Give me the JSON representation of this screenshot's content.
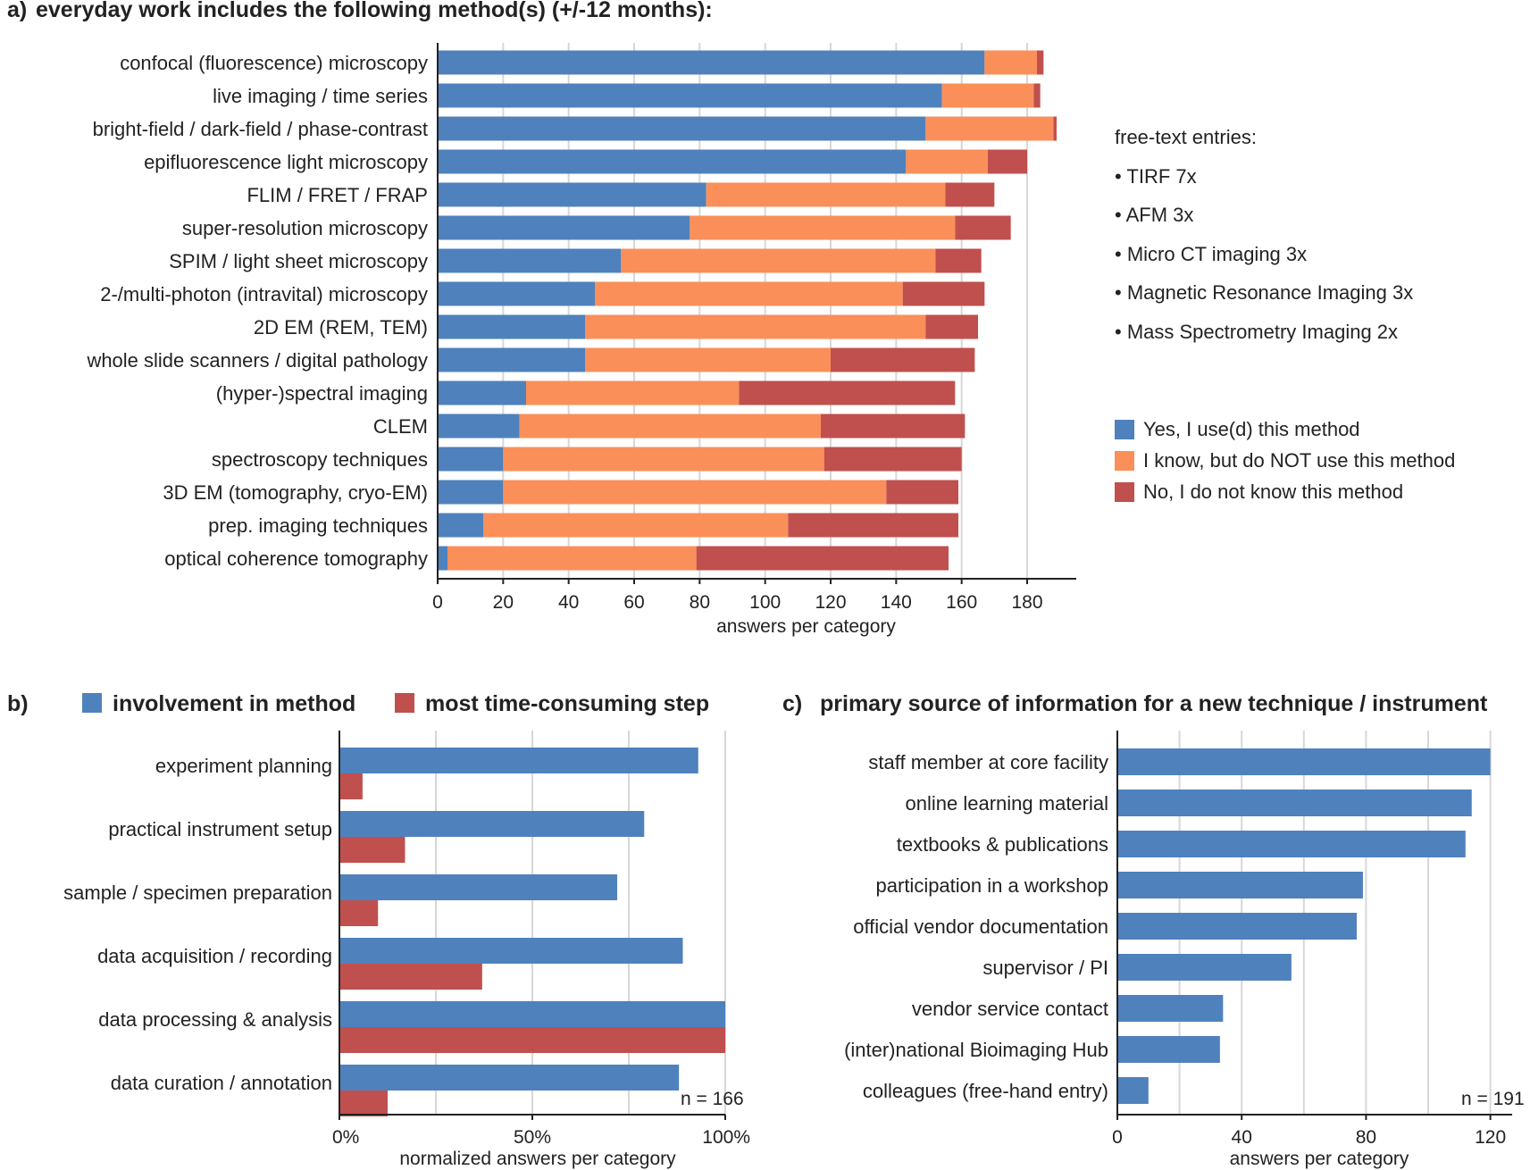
{
  "panel_a": {
    "tag": "a)",
    "title": "everyday work includes the following method(s) (+/-12 months):",
    "freetext_title": "free-text entries:",
    "freetext_items": [
      "• TIRF 7x",
      "• AFM 3x",
      "• Micro CT imaging 3x",
      "• Magnetic Resonance Imaging 3x",
      "• Mass Spectrometry Imaging 2x"
    ]
  },
  "panel_b": {
    "tag": "b)",
    "n_label": "n = 166"
  },
  "panel_c": {
    "tag": "c)",
    "title": "primary source of information for a new technique / instrument",
    "n_label": "n = 191"
  },
  "colors": {
    "blue": "#4f81bd",
    "orange": "#fa8f5a",
    "red": "#c0504d",
    "grid": "#d7d7d7"
  },
  "chart_data": [
    {
      "id": "a",
      "type": "bar",
      "orientation": "horizontal",
      "stacked": true,
      "title": "everyday work includes the following method(s) (+/-12 months):",
      "xlabel": "answers per category",
      "xlim": [
        0,
        195
      ],
      "xticks": [
        0,
        20,
        40,
        60,
        80,
        100,
        120,
        140,
        160,
        180
      ],
      "grid": true,
      "legend_position": "right",
      "categories": [
        "confocal (fluorescence) microscopy",
        "live imaging / time series",
        "bright-field / dark-field / phase-contrast",
        "epifluorescence light microscopy",
        "FLIM / FRET / FRAP",
        "super-resolution microscopy",
        "SPIM / light sheet microscopy",
        "2-/multi-photon (intravital) microscopy",
        "2D EM (REM, TEM)",
        "whole slide scanners / digital pathology",
        "(hyper-)spectral imaging",
        "CLEM",
        "spectroscopy techniques",
        "3D EM (tomography, cryo-EM)",
        "prep. imaging techniques",
        "optical coherence tomography"
      ],
      "series": [
        {
          "name": "Yes, I use(d) this method",
          "color": "#4f81bd",
          "values": [
            167,
            154,
            149,
            143,
            82,
            77,
            56,
            48,
            45,
            45,
            27,
            25,
            20,
            20,
            14,
            3
          ]
        },
        {
          "name": "I know, but do NOT use this method",
          "color": "#fa8f5a",
          "values": [
            16,
            28,
            39,
            25,
            73,
            81,
            96,
            94,
            104,
            75,
            65,
            92,
            98,
            117,
            93,
            76
          ]
        },
        {
          "name": "No, I do not know this method",
          "color": "#c0504d",
          "values": [
            2,
            2,
            1,
            12,
            15,
            17,
            14,
            25,
            16,
            44,
            66,
            44,
            42,
            22,
            52,
            77
          ]
        }
      ]
    },
    {
      "id": "b",
      "type": "bar",
      "orientation": "horizontal",
      "stacked": false,
      "xlabel": "normalized answers per category",
      "xlim": [
        0,
        100
      ],
      "xticks": [
        0,
        50,
        100
      ],
      "xtick_labels": [
        "0%",
        "50%",
        "100%"
      ],
      "grid": true,
      "legend_position": "top",
      "categories": [
        "experiment planning",
        "practical instrument setup",
        "sample / specimen preparation",
        "data acquisition / recording",
        "data processing & analysis",
        "data curation / annotation"
      ],
      "series": [
        {
          "name": "involvement in method",
          "color": "#4f81bd",
          "values": [
            93,
            79,
            72,
            89,
            100,
            88
          ]
        },
        {
          "name": "most time-consuming step",
          "color": "#c0504d",
          "values": [
            6,
            17,
            10,
            37,
            100,
            12.5
          ]
        }
      ]
    },
    {
      "id": "c",
      "type": "bar",
      "orientation": "horizontal",
      "title": "primary source of information for a new technique / instrument",
      "xlabel": "answers per category",
      "xlim": [
        0,
        127
      ],
      "xticks": [
        0,
        40,
        80,
        120
      ],
      "grid": true,
      "categories": [
        "staff member at core facility",
        "online learning material",
        "textbooks & publications",
        "participation in a workshop",
        "official vendor documentation",
        "supervisor / PI",
        "vendor service contact",
        "(inter)national Bioimaging Hub",
        "colleagues (free-hand entry)"
      ],
      "series": [
        {
          "color": "#4f81bd",
          "values": [
            120,
            114,
            112,
            79,
            77,
            56,
            34,
            33,
            10
          ]
        }
      ]
    }
  ]
}
